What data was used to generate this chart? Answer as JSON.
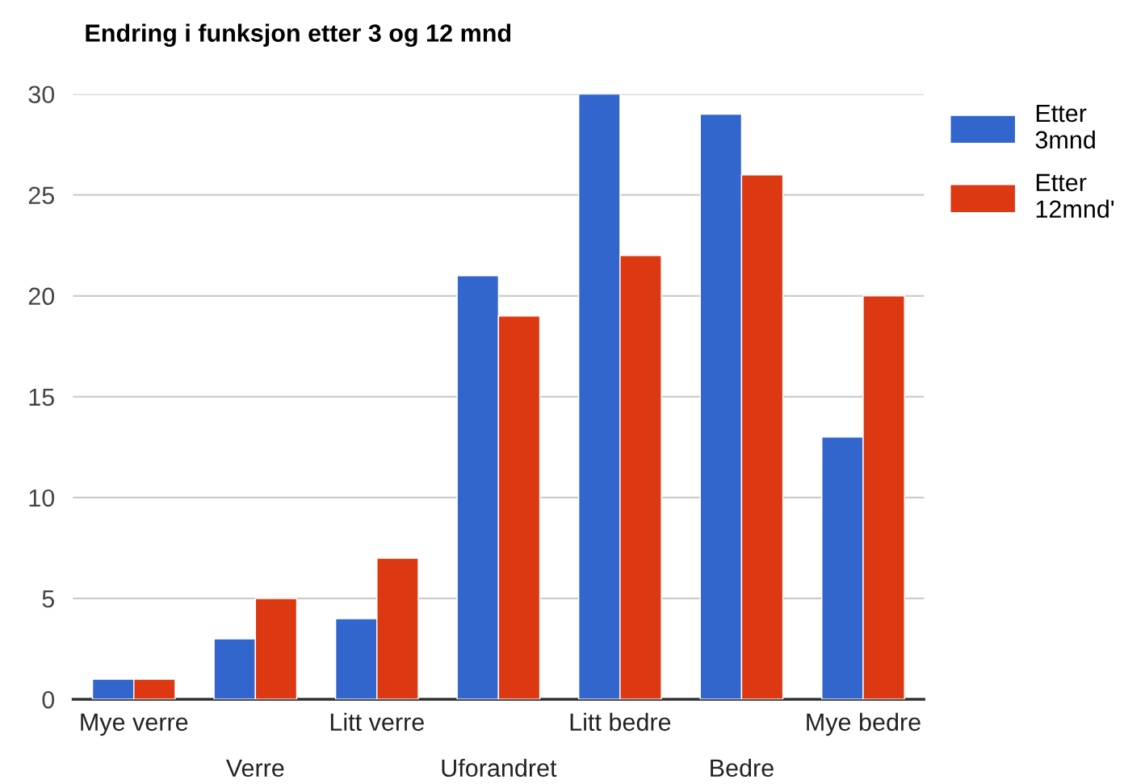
{
  "chart_data": {
    "type": "bar",
    "title": "Endring i funksjon etter 3 og 12 mnd",
    "categories": [
      "Mye verre",
      "Verre",
      "Litt verre",
      "Uforandret",
      "Litt bedre",
      "Bedre",
      "Mye bedre"
    ],
    "series": [
      {
        "name": "Etter 3mnd",
        "color": "#3366cc",
        "values": [
          1,
          3,
          4,
          21,
          30,
          29,
          13
        ]
      },
      {
        "name": "Etter 12mnd'",
        "color": "#dc3912",
        "values": [
          1,
          5,
          7,
          19,
          22,
          26,
          20
        ]
      }
    ],
    "ylim": [
      0,
      30
    ],
    "yticks": [
      0,
      5,
      10,
      15,
      20,
      25,
      30
    ],
    "grid": "y",
    "legend": "top right"
  }
}
